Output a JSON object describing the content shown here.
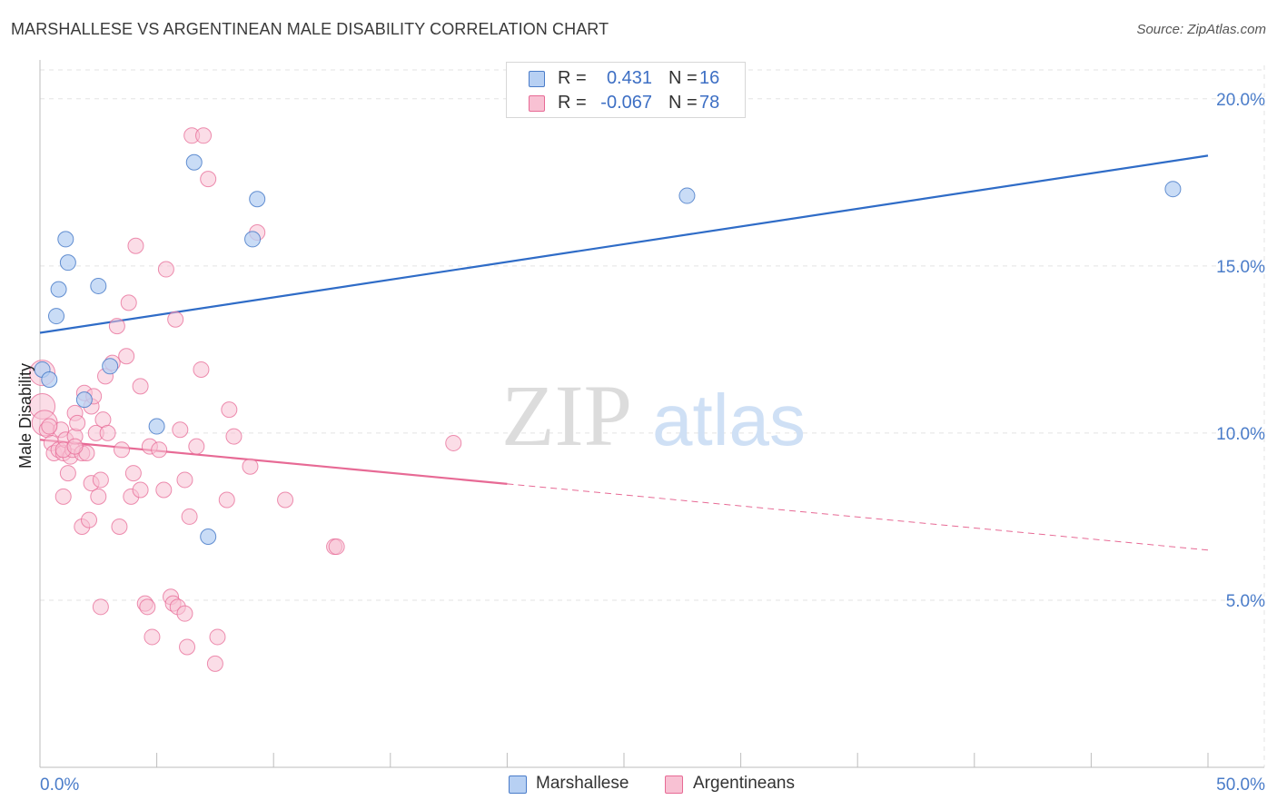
{
  "title": "MARSHALLESE VS ARGENTINEAN MALE DISABILITY CORRELATION CHART",
  "source": "Source: ZipAtlas.com",
  "watermark": {
    "zip": "ZIP",
    "atlas": "atlas"
  },
  "colors": {
    "blue": "#4a7cc9",
    "blue_fill": "#b7d0f3",
    "blue_line": "#2f6cc7",
    "pink": "#e76a95",
    "pink_fill": "#f8c1d3",
    "grid": "#e3e3e3"
  },
  "legend": {
    "rows": [
      {
        "r_label": "R =",
        "r_value": "0.431",
        "n_label": "N =",
        "n_value": "16"
      },
      {
        "r_label": "R =",
        "r_value": "-0.067",
        "n_label": "N =",
        "n_value": "78"
      }
    ]
  },
  "bottom_legend": [
    "Marshallese",
    "Argentineans"
  ],
  "chart_data": {
    "type": "scatter",
    "title": "MARSHALLESE VS ARGENTINEAN MALE DISABILITY CORRELATION CHART",
    "xlabel": "",
    "ylabel": "Male Disability",
    "xlim": [
      0,
      50
    ],
    "ylim": [
      0,
      21
    ],
    "x_tick_labels": [
      "0.0%",
      "50.0%"
    ],
    "y_ticks": [
      5,
      10,
      15,
      20
    ],
    "y_tick_labels": [
      "5.0%",
      "10.0%",
      "15.0%",
      "20.0%"
    ],
    "grid": true,
    "legend_position": "top-center",
    "series": [
      {
        "name": "Marshallese",
        "color": "#4a7cc9",
        "r": 0.431,
        "n": 16,
        "trend": {
          "x": [
            0,
            50
          ],
          "y": [
            13.0,
            18.3
          ],
          "extrapolated_from": null
        },
        "points": [
          [
            0.1,
            11.9
          ],
          [
            0.4,
            11.6
          ],
          [
            0.7,
            13.5
          ],
          [
            0.8,
            14.3
          ],
          [
            1.1,
            15.8
          ],
          [
            1.2,
            15.1
          ],
          [
            1.9,
            11.0
          ],
          [
            2.5,
            14.4
          ],
          [
            3.0,
            12.0
          ],
          [
            5.0,
            10.2
          ],
          [
            6.6,
            18.1
          ],
          [
            7.2,
            6.9
          ],
          [
            9.1,
            15.8
          ],
          [
            9.3,
            17.0
          ],
          [
            27.7,
            17.1
          ],
          [
            48.5,
            17.3
          ]
        ]
      },
      {
        "name": "Argentineans",
        "color": "#e76a95",
        "r": -0.067,
        "n": 78,
        "trend": {
          "x": [
            0,
            50
          ],
          "y": [
            9.8,
            6.5
          ],
          "solid_until_x": 20
        },
        "points": [
          [
            0.1,
            11.8
          ],
          [
            0.1,
            10.8
          ],
          [
            0.2,
            10.3
          ],
          [
            0.3,
            10.1
          ],
          [
            0.5,
            9.7
          ],
          [
            0.6,
            9.4
          ],
          [
            0.8,
            9.5
          ],
          [
            0.9,
            10.1
          ],
          [
            1.0,
            9.4
          ],
          [
            1.0,
            8.1
          ],
          [
            1.1,
            9.8
          ],
          [
            1.2,
            8.8
          ],
          [
            1.3,
            9.3
          ],
          [
            1.4,
            9.5
          ],
          [
            1.5,
            10.6
          ],
          [
            1.5,
            9.9
          ],
          [
            1.6,
            10.3
          ],
          [
            1.8,
            9.4
          ],
          [
            1.8,
            7.2
          ],
          [
            1.9,
            11.2
          ],
          [
            2.0,
            9.4
          ],
          [
            2.1,
            7.4
          ],
          [
            2.2,
            8.5
          ],
          [
            2.2,
            10.8
          ],
          [
            2.3,
            11.1
          ],
          [
            2.4,
            10.0
          ],
          [
            2.5,
            8.1
          ],
          [
            2.6,
            8.6
          ],
          [
            2.7,
            10.4
          ],
          [
            2.8,
            11.7
          ],
          [
            2.9,
            10.0
          ],
          [
            3.1,
            12.1
          ],
          [
            3.3,
            13.2
          ],
          [
            3.4,
            7.2
          ],
          [
            3.5,
            9.5
          ],
          [
            3.7,
            12.3
          ],
          [
            3.8,
            13.9
          ],
          [
            3.9,
            8.1
          ],
          [
            4.0,
            8.8
          ],
          [
            4.1,
            15.6
          ],
          [
            4.3,
            11.4
          ],
          [
            4.3,
            8.3
          ],
          [
            4.5,
            4.9
          ],
          [
            4.6,
            4.8
          ],
          [
            4.7,
            9.6
          ],
          [
            4.8,
            3.9
          ],
          [
            5.1,
            9.5
          ],
          [
            5.3,
            8.3
          ],
          [
            5.4,
            14.9
          ],
          [
            5.6,
            5.1
          ],
          [
            5.7,
            4.9
          ],
          [
            5.8,
            13.4
          ],
          [
            5.9,
            4.8
          ],
          [
            6.0,
            10.1
          ],
          [
            6.2,
            4.6
          ],
          [
            6.2,
            8.6
          ],
          [
            6.3,
            3.6
          ],
          [
            6.4,
            7.5
          ],
          [
            6.5,
            18.9
          ],
          [
            6.7,
            9.6
          ],
          [
            6.9,
            11.9
          ],
          [
            7.0,
            18.9
          ],
          [
            7.2,
            17.6
          ],
          [
            7.5,
            3.1
          ],
          [
            7.6,
            3.9
          ],
          [
            8.0,
            8.0
          ],
          [
            8.1,
            10.7
          ],
          [
            8.3,
            9.9
          ],
          [
            9.0,
            9.0
          ],
          [
            9.3,
            16.0
          ],
          [
            10.5,
            8.0
          ],
          [
            12.6,
            6.6
          ],
          [
            12.7,
            6.6
          ],
          [
            17.7,
            9.7
          ],
          [
            2.6,
            4.8
          ],
          [
            1.0,
            9.5
          ],
          [
            1.5,
            9.6
          ],
          [
            0.4,
            10.2
          ]
        ]
      }
    ]
  }
}
